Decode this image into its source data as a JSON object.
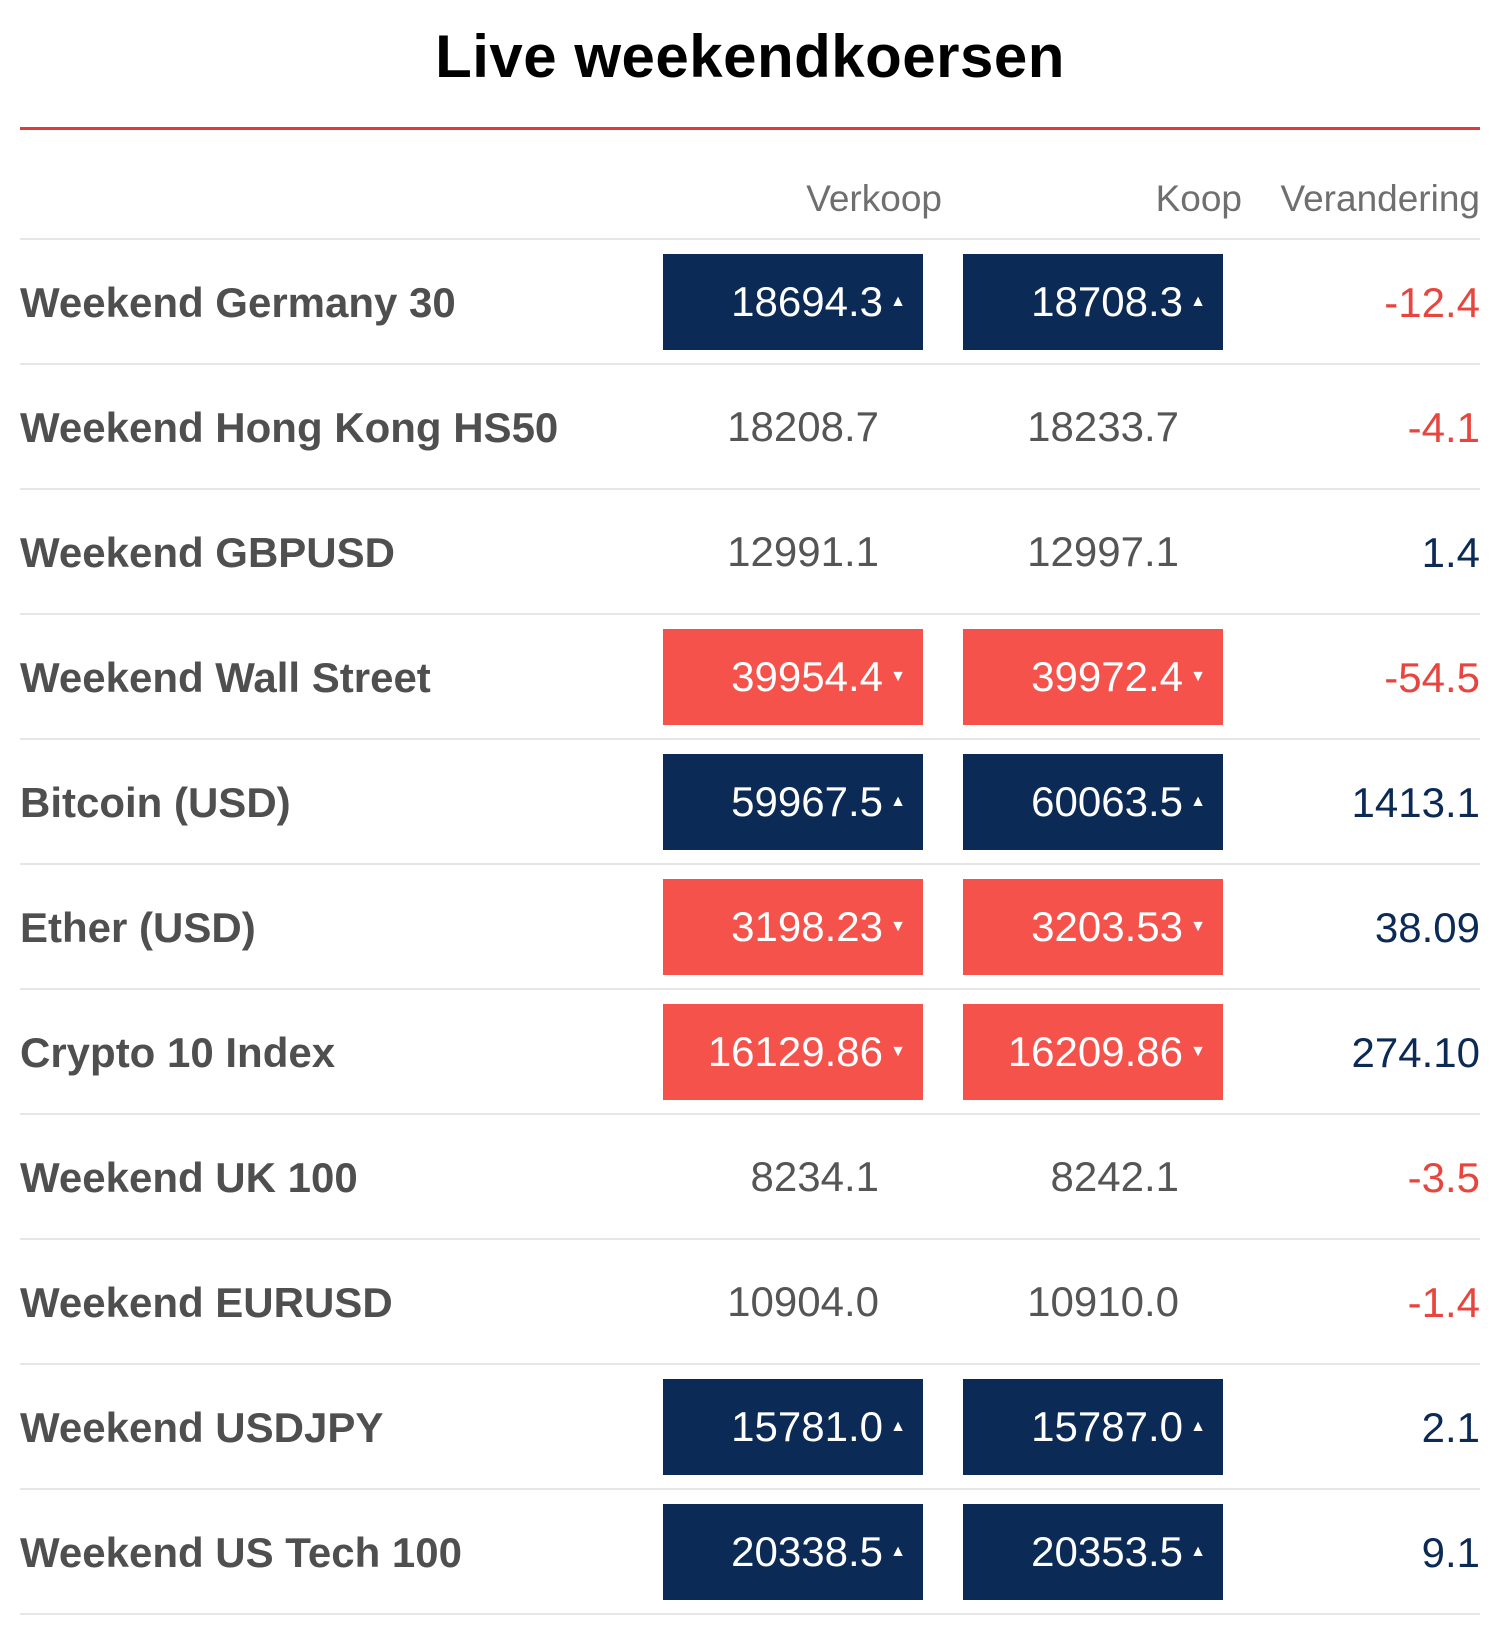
{
  "title": "Live weekendkoersen",
  "colors": {
    "accent_rule": "#e03a3a",
    "up_bg": "#0b2a55",
    "down_bg": "#f5524c",
    "negative_text": "#e8453f",
    "positive_text": "#0b2a55"
  },
  "headers": {
    "sell": "Verkoop",
    "buy": "Koop",
    "change": "Verandering"
  },
  "icons": {
    "up": "caret-up-icon",
    "down": "caret-down-icon"
  },
  "rows": [
    {
      "name": "Weekend Germany 30",
      "sell": "18694.3",
      "buy": "18708.3",
      "change": "-12.4",
      "direction": "up",
      "change_sign": "neg"
    },
    {
      "name": "Weekend Hong Kong HS50",
      "sell": "18208.7",
      "buy": "18233.7",
      "change": "-4.1",
      "direction": "neutral",
      "change_sign": "neg"
    },
    {
      "name": "Weekend GBPUSD",
      "sell": "12991.1",
      "buy": "12997.1",
      "change": "1.4",
      "direction": "neutral",
      "change_sign": "pos"
    },
    {
      "name": "Weekend Wall Street",
      "sell": "39954.4",
      "buy": "39972.4",
      "change": "-54.5",
      "direction": "down",
      "change_sign": "neg"
    },
    {
      "name": "Bitcoin (USD)",
      "sell": "59967.5",
      "buy": "60063.5",
      "change": "1413.1",
      "direction": "up",
      "change_sign": "pos"
    },
    {
      "name": "Ether (USD)",
      "sell": "3198.23",
      "buy": "3203.53",
      "change": "38.09",
      "direction": "down",
      "change_sign": "pos"
    },
    {
      "name": "Crypto 10 Index",
      "sell": "16129.86",
      "buy": "16209.86",
      "change": "274.10",
      "direction": "down",
      "change_sign": "pos"
    },
    {
      "name": "Weekend UK 100",
      "sell": "8234.1",
      "buy": "8242.1",
      "change": "-3.5",
      "direction": "neutral",
      "change_sign": "neg"
    },
    {
      "name": "Weekend EURUSD",
      "sell": "10904.0",
      "buy": "10910.0",
      "change": "-1.4",
      "direction": "neutral",
      "change_sign": "neg"
    },
    {
      "name": "Weekend USDJPY",
      "sell": "15781.0",
      "buy": "15787.0",
      "change": "2.1",
      "direction": "up",
      "change_sign": "pos"
    },
    {
      "name": "Weekend US Tech 100",
      "sell": "20338.5",
      "buy": "20353.5",
      "change": "9.1",
      "direction": "up",
      "change_sign": "pos"
    }
  ]
}
